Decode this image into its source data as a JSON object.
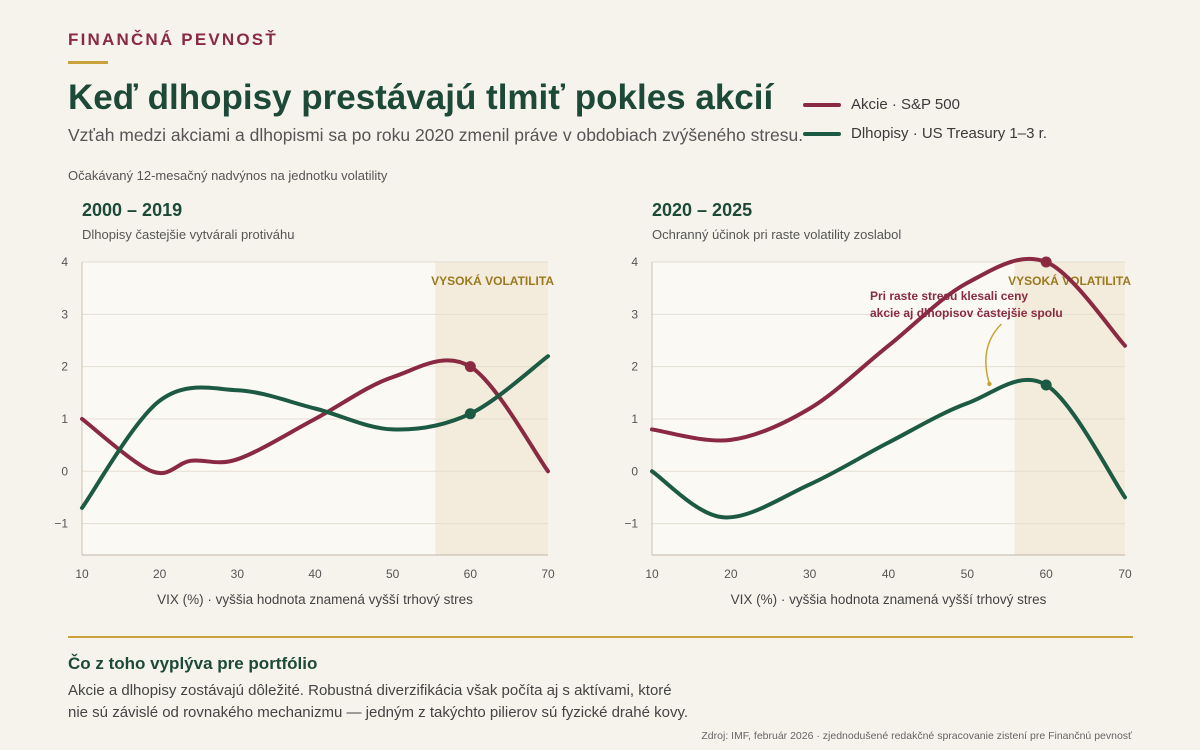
{
  "header": {
    "kicker": "FINANČNÁ PEVNOSŤ",
    "title": "Keď dlhopisy prestávajú tlmiť pokles akcií",
    "subtitle": "Vzťah medzi akciami a dlhopismi sa po roku 2020 zmenil práve v obdobiach zvýšeného stresu.",
    "y_measure_note": "Očakávaný 12-mesačný nadvýnos na jednotku volatility"
  },
  "legend": [
    {
      "label": "Akcie · S&P 500",
      "color": "#8a2a42"
    },
    {
      "label": "Dlhopisy · US Treasury 1–3 r.",
      "color": "#1d5a44"
    }
  ],
  "colors": {
    "stocks": "#8a2a42",
    "bonds": "#1d5a44",
    "accent_gold": "#c9a23a",
    "highlight_zone": "#f3ebdb"
  },
  "chart_data": [
    {
      "type": "line",
      "title": "2000 – 2019",
      "subtitle": "Dlhopisy častejšie vytvárali protiváhu",
      "xlabel": "VIX (%) · vyššia hodnota znamená vyšší trhový stres",
      "xlim": [
        10,
        70
      ],
      "ylim": [
        -1.6,
        4
      ],
      "x_ticks": [
        10,
        20,
        30,
        40,
        50,
        60,
        70
      ],
      "y_ticks": [
        -1,
        0,
        1,
        2,
        3,
        4
      ],
      "y_tick_labels": [
        "−1",
        "0",
        "1",
        "2",
        "3",
        "4"
      ],
      "grid": true,
      "highlight_zone": {
        "from": 55.5,
        "to": 70,
        "label": "VYSOKÁ VOLATILITA"
      },
      "series": [
        {
          "name": "Akcie · S&P 500",
          "key": "stocks",
          "x": [
            10,
            19,
            24,
            30,
            40,
            50,
            60,
            70
          ],
          "y": [
            1.0,
            0.0,
            0.2,
            0.23,
            1.0,
            1.8,
            2.0,
            0.0
          ]
        },
        {
          "name": "Dlhopisy · US Treasury 1–3 r.",
          "key": "bonds",
          "x": [
            10,
            20,
            30,
            40,
            50,
            60,
            70
          ],
          "y": [
            -0.7,
            1.35,
            1.55,
            1.2,
            0.8,
            1.1,
            2.2
          ]
        }
      ],
      "markers": [
        {
          "series": "stocks",
          "x": 60,
          "y": 2.0
        },
        {
          "series": "bonds",
          "x": 60,
          "y": 1.1
        }
      ]
    },
    {
      "type": "line",
      "title": "2020 – 2025",
      "subtitle": "Ochranný účinok pri raste volatility zoslabol",
      "xlabel": "VIX (%) · vyššia hodnota znamená vyšší trhový stres",
      "xlim": [
        10,
        70
      ],
      "ylim": [
        -1.6,
        4
      ],
      "x_ticks": [
        10,
        20,
        30,
        40,
        50,
        60,
        70
      ],
      "y_ticks": [
        -1,
        0,
        1,
        2,
        3,
        4
      ],
      "y_tick_labels": [
        "−1",
        "0",
        "1",
        "2",
        "3",
        "4"
      ],
      "grid": true,
      "highlight_zone": {
        "from": 56,
        "to": 70,
        "label": "VYSOKÁ VOLATILITA"
      },
      "annotation": {
        "lines": [
          "Pri raste stresu klesali ceny",
          "akcie aj dlhopisov častejšie spolu"
        ],
        "point_x": 52.8,
        "point_y": 1.67
      },
      "series": [
        {
          "name": "Akcie · S&P 500",
          "key": "stocks",
          "x": [
            10,
            20,
            30,
            40,
            50,
            60,
            70
          ],
          "y": [
            0.8,
            0.6,
            1.2,
            2.4,
            3.6,
            4.0,
            2.4
          ]
        },
        {
          "name": "Dlhopisy · US Treasury 1–3 r.",
          "key": "bonds",
          "x": [
            10,
            19,
            30,
            40,
            50,
            60,
            70
          ],
          "y": [
            0.0,
            -0.88,
            -0.25,
            0.55,
            1.3,
            1.65,
            -0.5
          ]
        }
      ],
      "markers": [
        {
          "series": "stocks",
          "x": 60,
          "y": 4.0
        },
        {
          "series": "bonds",
          "x": 60,
          "y": 1.65
        }
      ]
    }
  ],
  "takeaway": {
    "title": "Čo z toho vyplýva pre portfólio",
    "text_line1": "Akcie a dlhopisy zostávajú dôležité. Robustná diverzifikácia však počíta aj s aktívami, ktoré",
    "text_line2": "nie sú závislé od rovnakého mechanizmu — jedným z takýchto pilierov sú fyzické drahé kovy."
  },
  "source": "Zdroj: IMF, február 2026 · zjednodušené redakčné spracovanie zistení pre Finančnú pevnosť"
}
